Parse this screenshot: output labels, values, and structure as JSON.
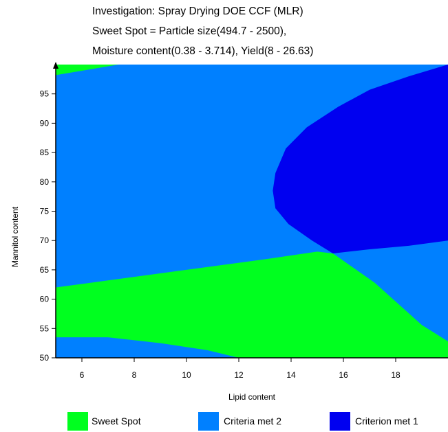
{
  "title": {
    "line1": "Investigation: Spray Drying DOE CCF (MLR)",
    "line2": "Sweet Spot = Particle size(494.7 - 2500),",
    "line3": "Moisture content(0.38 - 3.714), Yield(8 - 26.63)"
  },
  "colors": {
    "sweet_spot": "#00ff1f",
    "criteria_met_2": "#0080ff",
    "criterion_met_1": "#0000f0",
    "axis": "#000000"
  },
  "chart_data": {
    "type": "heatmap",
    "xlabel": "Lipid content",
    "ylabel": "Mannitol content",
    "xlim": [
      5,
      20
    ],
    "ylim": [
      50,
      100
    ],
    "x_ticks": [
      6,
      8,
      10,
      12,
      14,
      16,
      18
    ],
    "y_ticks": [
      50,
      55,
      60,
      65,
      70,
      75,
      80,
      85,
      90,
      95
    ],
    "regions": [
      {
        "name": "Criteria met 2",
        "color_key": "criteria_met_2",
        "polygon": [
          [
            5,
            50
          ],
          [
            20,
            50
          ],
          [
            20,
            100
          ],
          [
            5,
            100
          ]
        ]
      },
      {
        "name": "Sweet Spot",
        "color_key": "sweet_spot",
        "polygon": [
          [
            5,
            98.2
          ],
          [
            7.4,
            100
          ],
          [
            5,
            100
          ]
        ]
      },
      {
        "name": "Sweet Spot",
        "color_key": "sweet_spot",
        "polygon": [
          [
            5,
            62
          ],
          [
            7,
            63.2
          ],
          [
            9,
            64.4
          ],
          [
            11,
            65.6
          ],
          [
            13,
            66.8
          ],
          [
            15,
            68.1
          ],
          [
            15.6,
            67.8
          ],
          [
            17.2,
            62.8
          ],
          [
            19,
            55.6
          ],
          [
            20,
            52.8
          ],
          [
            20,
            50
          ],
          [
            12,
            50
          ],
          [
            10.8,
            51.3
          ],
          [
            9,
            52.5
          ],
          [
            7,
            53.5
          ],
          [
            5,
            53.5
          ]
        ]
      },
      {
        "name": "Criterion met 1",
        "color_key": "criterion_met_1",
        "polygon": [
          [
            15.6,
            67.8
          ],
          [
            14.8,
            70
          ],
          [
            13.9,
            72.8
          ],
          [
            13.4,
            75.5
          ],
          [
            13.3,
            78.5
          ],
          [
            13.4,
            81.5
          ],
          [
            13.8,
            85.7
          ],
          [
            14.6,
            89.3
          ],
          [
            15.8,
            92.8
          ],
          [
            17,
            95.7
          ],
          [
            18.5,
            98
          ],
          [
            20,
            100
          ],
          [
            20,
            70
          ],
          [
            18.5,
            69.1
          ],
          [
            17,
            68.5
          ]
        ]
      }
    ],
    "legend": {
      "placement": "bottom",
      "entries": [
        {
          "label": "Sweet Spot",
          "color_key": "sweet_spot"
        },
        {
          "label": "Criteria met 2",
          "color_key": "criteria_met_2"
        },
        {
          "label": "Criterion met 1",
          "color_key": "criterion_met_1"
        }
      ]
    }
  }
}
